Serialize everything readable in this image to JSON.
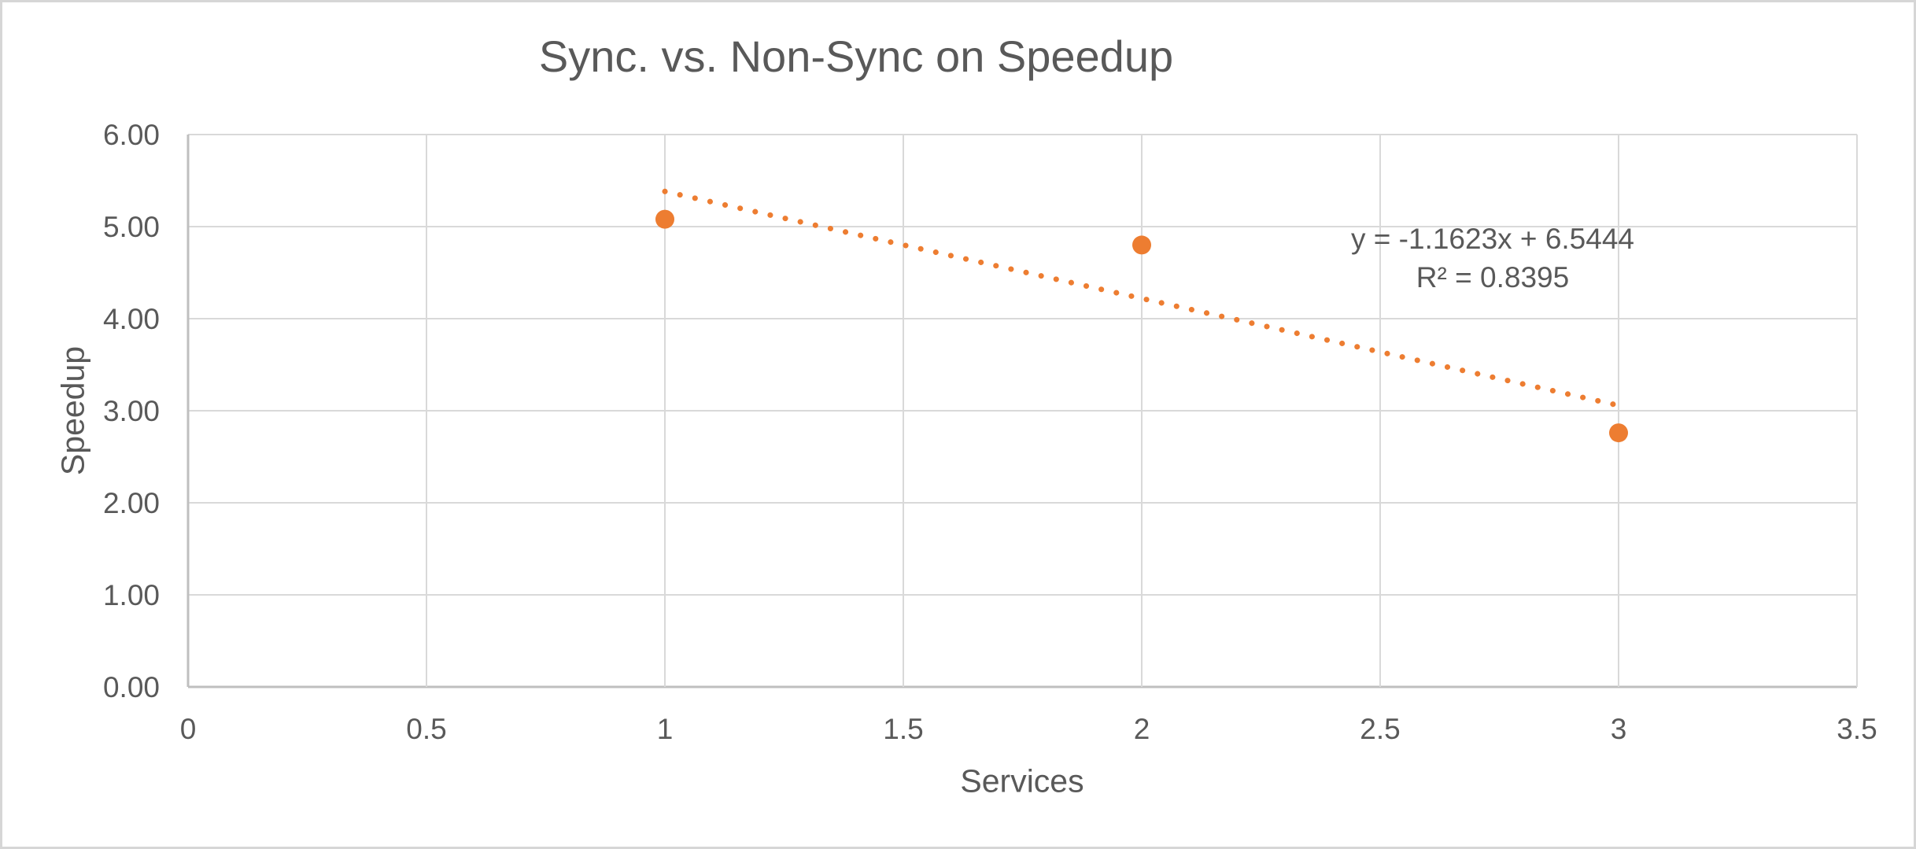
{
  "chart": {
    "title": "Sync. vs. Non-Sync on Speedup",
    "x_axis_title": "Services",
    "y_axis_title": "Speedup"
  },
  "chart_data": {
    "type": "scatter",
    "title": "Sync. vs. Non-Sync on Speedup",
    "xlabel": "Services",
    "ylabel": "Speedup",
    "points": [
      {
        "x": 1,
        "y": 5.08
      },
      {
        "x": 2,
        "y": 4.8
      },
      {
        "x": 3,
        "y": 2.76
      }
    ],
    "xlim": [
      0,
      3.5
    ],
    "ylim": [
      0,
      6
    ],
    "x_ticks": [
      {
        "value": 0,
        "label": "0"
      },
      {
        "value": 0.5,
        "label": "0.5"
      },
      {
        "value": 1,
        "label": "1"
      },
      {
        "value": 1.5,
        "label": "1.5"
      },
      {
        "value": 2,
        "label": "2"
      },
      {
        "value": 2.5,
        "label": "2.5"
      },
      {
        "value": 3,
        "label": "3"
      },
      {
        "value": 3.5,
        "label": "3.5"
      }
    ],
    "y_ticks": [
      {
        "value": 0,
        "label": "0.00"
      },
      {
        "value": 1,
        "label": "1.00"
      },
      {
        "value": 2,
        "label": "2.00"
      },
      {
        "value": 3,
        "label": "3.00"
      },
      {
        "value": 4,
        "label": "4.00"
      },
      {
        "value": 5,
        "label": "5.00"
      },
      {
        "value": 6,
        "label": "6.00"
      }
    ],
    "grid": true,
    "legend": "none",
    "trendline": {
      "style": "dotted",
      "slope": -1.1623,
      "intercept": 6.5444,
      "r2": 0.8395,
      "x_start": 1,
      "x_end": 3,
      "equation_label": "y = -1.1623x + 6.5444",
      "r_squared_label": "R² = 0.8395"
    },
    "colors": {
      "series": "#ED7D31",
      "gridline": "#D9D9D9",
      "axis_line": "#BFBFBF",
      "text": "#595959",
      "frame_border": "#D6D6D6"
    }
  }
}
